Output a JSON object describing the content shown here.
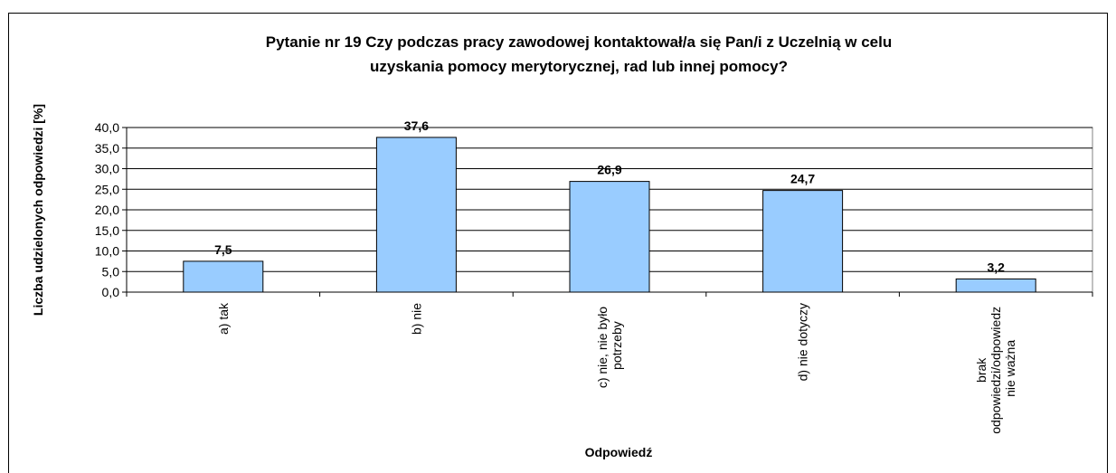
{
  "chart_data": {
    "type": "bar",
    "title": [
      "Pytanie nr 19 Czy podczas pracy zawodowej kontaktował/a się Pan/i z Uczelnią w celu",
      "uzyskania pomocy merytorycznej, rad lub innej pomocy?"
    ],
    "x_label": "Odpowiedź",
    "y_label": "Liczba udzielonych odpowiedzi [%]",
    "categories": [
      "a) tak",
      "b) nie",
      "c) nie, nie było potrzeby",
      "d) nie dotyczy",
      "brak odpowiedzi/odpowiedz nie ważna"
    ],
    "values": [
      7.5,
      37.6,
      26.9,
      24.7,
      3.2
    ],
    "value_labels": [
      "7,5",
      "37,6",
      "26,9",
      "24,7",
      "3,2"
    ],
    "color": "#99ccff",
    "ylim": [
      0,
      40
    ],
    "yticks": [
      {
        "value": 0,
        "label": "0,0"
      },
      {
        "value": 5,
        "label": "5,0"
      },
      {
        "value": 10,
        "label": "10,0"
      },
      {
        "value": 15,
        "label": "15,0"
      },
      {
        "value": 20,
        "label": "20,0"
      },
      {
        "value": 25,
        "label": "25,0"
      },
      {
        "value": 30,
        "label": "30,0"
      },
      {
        "value": 35,
        "label": "35,0"
      },
      {
        "value": 40,
        "label": "40,0"
      }
    ],
    "grid": true
  }
}
